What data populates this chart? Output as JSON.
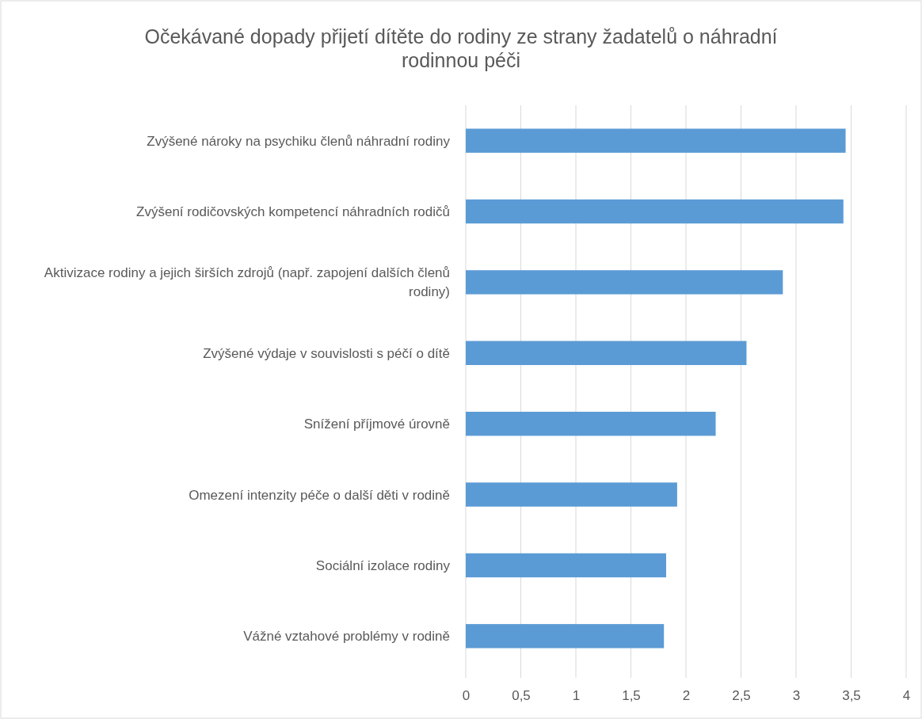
{
  "chart_data": {
    "type": "bar",
    "orientation": "horizontal",
    "title": "Očekávané dopady přijetí dítěte do rodiny ze strany žadatelů o náhradní rodinnou péči",
    "categories": [
      "Zvýšené nároky na psychiku členů náhradní rodiny",
      "Zvýšení rodičovských kompetencí náhradních rodičů",
      "Aktivizace rodiny a jejich širších zdrojů (např. zapojení dalších členů rodiny)",
      "Zvýšené výdaje v souvislosti s péčí o dítě",
      "Snížení příjmové úrovně",
      "Omezení intenzity péče o další děti v rodině",
      "Sociální izolace rodiny",
      "Vážné vztahové problémy v rodině"
    ],
    "values": [
      3.45,
      3.43,
      2.88,
      2.55,
      2.27,
      1.92,
      1.82,
      1.8
    ],
    "color": "#5b9bd5",
    "xlim": [
      0,
      4
    ],
    "xticks": [
      0,
      {
        "value": 0.5,
        "label": "0,5"
      },
      1,
      {
        "value": 1.5,
        "label": "1,5"
      },
      2,
      {
        "value": 2.5,
        "label": "2,5"
      },
      3,
      {
        "value": 3.5,
        "label": "3,5"
      },
      4
    ],
    "grid": "x"
  }
}
